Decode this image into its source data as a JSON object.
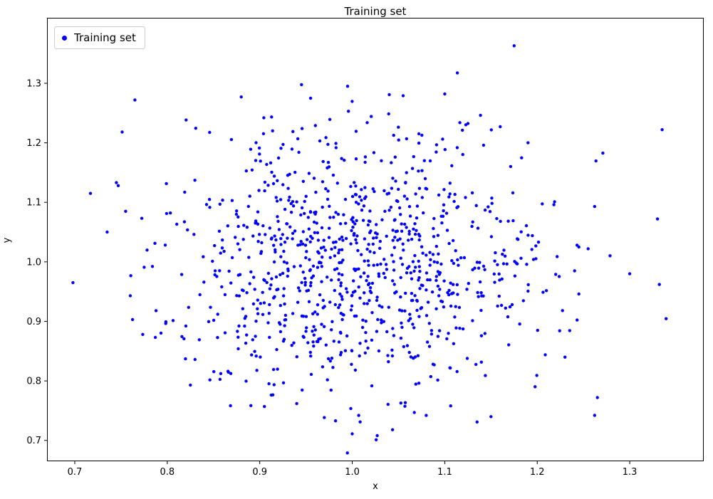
{
  "chart_data": {
    "type": "scatter",
    "title": "Training set",
    "xlabel": "x",
    "ylabel": "y",
    "xlim": [
      0.67,
      1.38
    ],
    "ylim": [
      0.665,
      1.41
    ],
    "xticks": [
      0.7,
      0.8,
      0.9,
      1.0,
      1.1,
      1.2,
      1.3
    ],
    "yticks": [
      0.7,
      0.8,
      0.9,
      1.0,
      1.1,
      1.2,
      1.3
    ],
    "grid": false,
    "legend": {
      "label": "Training set",
      "position": "upper-left"
    },
    "series": [
      {
        "name": "Training set",
        "color": "#0000ff",
        "marker": "point",
        "marker_radius": 2.2,
        "n_points": 950,
        "distribution": {
          "kind": "gaussian",
          "mean": [
            1.0,
            1.0
          ],
          "std": [
            0.1,
            0.11
          ],
          "seed": 42
        }
      }
    ],
    "sample_points": [
      [
        1.175,
        1.363
      ],
      [
        0.765,
        1.272
      ],
      [
        0.995,
        1.295
      ],
      [
        1.335,
        1.222
      ],
      [
        1.33,
        1.072
      ],
      [
        1.332,
        0.962
      ],
      [
        1.265,
        0.772
      ],
      [
        1.262,
        1.093
      ],
      [
        1.0,
        0.711
      ],
      [
        1.027,
        0.708
      ],
      [
        0.698,
        0.965
      ],
      [
        0.717,
        1.115
      ],
      [
        0.735,
        1.05
      ],
      [
        0.745,
        1.133
      ],
      [
        0.755,
        1.085
      ],
      [
        1.1,
        1.282
      ],
      [
        1.19,
        1.2
      ],
      [
        1.245,
        1.025
      ],
      [
        1.255,
        1.022
      ],
      [
        1.218,
        1.096
      ],
      [
        1.16,
        1.227
      ],
      [
        0.88,
        1.277
      ],
      [
        0.955,
        1.275
      ],
      [
        1.04,
        1.281
      ],
      [
        1.055,
        1.279
      ],
      [
        0.825,
        0.793
      ],
      [
        0.83,
        0.836
      ],
      [
        1.08,
        0.742
      ],
      [
        1.135,
        0.731
      ],
      [
        1.15,
        0.74
      ],
      [
        0.905,
        0.757
      ],
      [
        0.94,
        0.762
      ],
      [
        1.007,
        0.742
      ],
      [
        1.22,
        0.979
      ],
      [
        1.23,
        0.84
      ],
      [
        1.245,
        0.946
      ],
      [
        0.76,
        0.943
      ],
      [
        0.775,
        0.991
      ],
      [
        1.3,
        0.98
      ],
      [
        1.243,
        1.028
      ]
    ]
  }
}
